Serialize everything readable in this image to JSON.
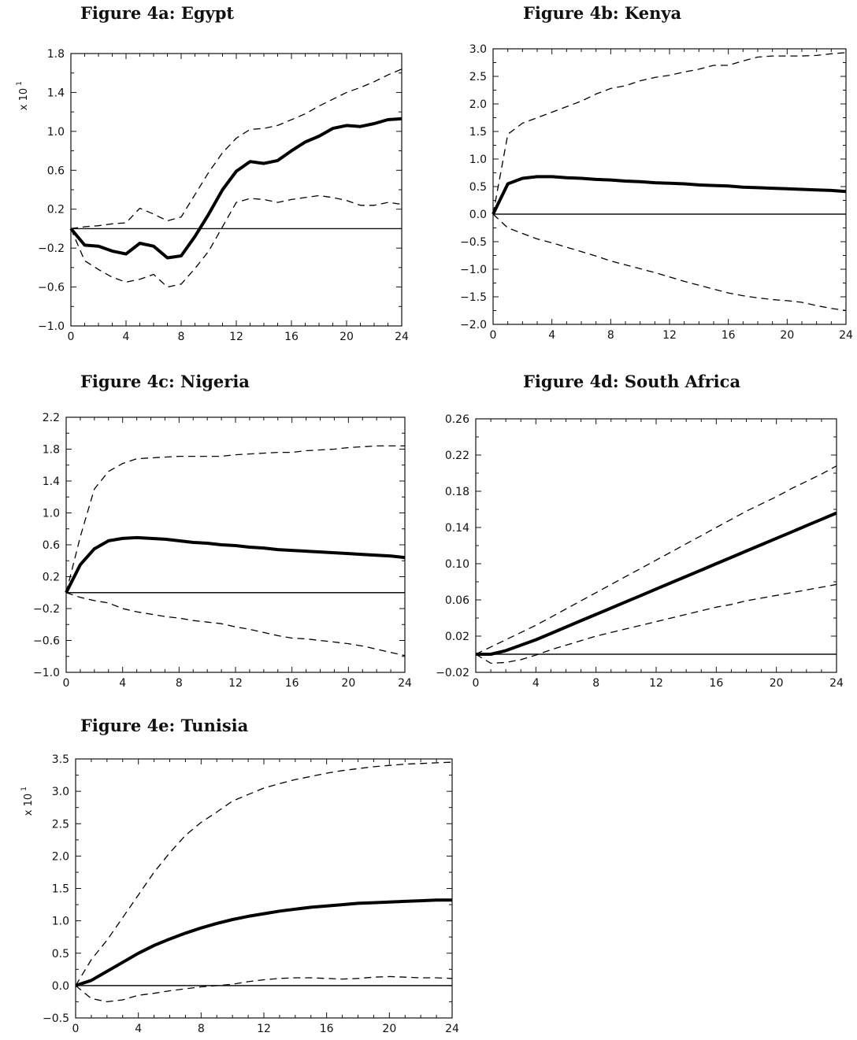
{
  "chart_data": [
    {
      "type": "line",
      "title": "Figure 4a: Egypt",
      "scale_label": "x 10",
      "scale_exp": "1",
      "xlim": [
        0,
        24
      ],
      "ylim": [
        -1.0,
        1.8
      ],
      "xticks": [
        "0",
        "4",
        "8",
        "12",
        "16",
        "20",
        "24"
      ],
      "yticks": [
        "-1.0",
        "-0.6",
        "-0.2",
        "0.2",
        "0.6",
        "1.0",
        "1.4",
        "1.8"
      ],
      "zero_line": true,
      "x": [
        0,
        1,
        2,
        3,
        4,
        5,
        6,
        7,
        8,
        9,
        10,
        11,
        12,
        13,
        14,
        15,
        16,
        17,
        18,
        19,
        20,
        21,
        22,
        23,
        24
      ],
      "series": [
        {
          "role": "estimate",
          "values": [
            0.0,
            -0.17,
            -0.18,
            -0.23,
            -0.26,
            -0.15,
            -0.18,
            -0.3,
            -0.28,
            -0.08,
            0.15,
            0.4,
            0.59,
            0.69,
            0.67,
            0.7,
            0.8,
            0.89,
            0.95,
            1.03,
            1.06,
            1.05,
            1.08,
            1.12,
            1.13
          ]
        },
        {
          "role": "upper",
          "values": [
            0.0,
            0.02,
            0.03,
            0.05,
            0.06,
            0.21,
            0.15,
            0.08,
            0.12,
            0.35,
            0.58,
            0.78,
            0.93,
            1.02,
            1.03,
            1.06,
            1.12,
            1.18,
            1.26,
            1.33,
            1.4,
            1.45,
            1.51,
            1.58,
            1.64
          ]
        },
        {
          "role": "lower",
          "values": [
            0.0,
            -0.33,
            -0.42,
            -0.5,
            -0.55,
            -0.52,
            -0.47,
            -0.6,
            -0.57,
            -0.41,
            -0.23,
            0.02,
            0.27,
            0.31,
            0.3,
            0.27,
            0.3,
            0.32,
            0.34,
            0.32,
            0.29,
            0.24,
            0.24,
            0.27,
            0.25
          ]
        }
      ]
    },
    {
      "type": "line",
      "title": "Figure 4b: Kenya",
      "scale_label": "",
      "scale_exp": "",
      "xlim": [
        0,
        24
      ],
      "ylim": [
        -2.0,
        3.0
      ],
      "xticks": [
        "0",
        "4",
        "8",
        "12",
        "16",
        "20",
        "24"
      ],
      "yticks": [
        "-2.0",
        "-1.5",
        "-1.0",
        "-0.5",
        "0.0",
        "0.5",
        "1.0",
        "1.5",
        "2.0",
        "2.5",
        "3.0"
      ],
      "zero_line": true,
      "x": [
        0,
        1,
        2,
        3,
        4,
        5,
        6,
        7,
        8,
        9,
        10,
        11,
        12,
        13,
        14,
        15,
        16,
        17,
        18,
        19,
        20,
        21,
        22,
        23,
        24
      ],
      "series": [
        {
          "role": "estimate",
          "values": [
            0.0,
            0.55,
            0.65,
            0.68,
            0.68,
            0.66,
            0.65,
            0.63,
            0.62,
            0.6,
            0.59,
            0.57,
            0.56,
            0.55,
            0.53,
            0.52,
            0.51,
            0.49,
            0.48,
            0.47,
            0.46,
            0.45,
            0.44,
            0.43,
            0.41
          ]
        },
        {
          "role": "upper",
          "values": [
            0.0,
            1.45,
            1.65,
            1.75,
            1.85,
            1.95,
            2.05,
            2.18,
            2.28,
            2.33,
            2.42,
            2.48,
            2.52,
            2.58,
            2.63,
            2.7,
            2.7,
            2.78,
            2.85,
            2.87,
            2.87,
            2.87,
            2.88,
            2.91,
            2.93
          ]
        },
        {
          "role": "lower",
          "values": [
            0.0,
            -0.25,
            -0.35,
            -0.45,
            -0.52,
            -0.6,
            -0.68,
            -0.76,
            -0.85,
            -0.92,
            -0.99,
            -1.06,
            -1.14,
            -1.22,
            -1.29,
            -1.36,
            -1.43,
            -1.48,
            -1.52,
            -1.55,
            -1.57,
            -1.6,
            -1.66,
            -1.71,
            -1.75
          ]
        }
      ]
    },
    {
      "type": "line",
      "title": "Figure 4c: Nigeria",
      "scale_label": "",
      "scale_exp": "",
      "xlim": [
        0,
        24
      ],
      "ylim": [
        -1.0,
        2.2
      ],
      "xticks": [
        "0",
        "4",
        "8",
        "12",
        "16",
        "20",
        "24"
      ],
      "yticks": [
        "-1.0",
        "-0.6",
        "-0.2",
        "0.2",
        "0.6",
        "1.0",
        "1.4",
        "1.8",
        "2.2"
      ],
      "zero_line": true,
      "x": [
        0,
        1,
        2,
        3,
        4,
        5,
        6,
        7,
        8,
        9,
        10,
        11,
        12,
        13,
        14,
        15,
        16,
        17,
        18,
        19,
        20,
        21,
        22,
        23,
        24
      ],
      "series": [
        {
          "role": "estimate",
          "values": [
            0.0,
            0.35,
            0.55,
            0.65,
            0.68,
            0.69,
            0.68,
            0.67,
            0.65,
            0.63,
            0.62,
            0.6,
            0.59,
            0.57,
            0.56,
            0.54,
            0.53,
            0.52,
            0.51,
            0.5,
            0.49,
            0.48,
            0.47,
            0.46,
            0.44
          ]
        },
        {
          "role": "upper",
          "values": [
            0.0,
            0.7,
            1.3,
            1.52,
            1.62,
            1.68,
            1.69,
            1.7,
            1.71,
            1.71,
            1.71,
            1.71,
            1.73,
            1.74,
            1.75,
            1.76,
            1.76,
            1.78,
            1.79,
            1.8,
            1.82,
            1.83,
            1.84,
            1.84,
            1.84
          ]
        },
        {
          "role": "lower",
          "values": [
            0.0,
            -0.06,
            -0.1,
            -0.13,
            -0.2,
            -0.24,
            -0.27,
            -0.3,
            -0.32,
            -0.35,
            -0.37,
            -0.39,
            -0.43,
            -0.46,
            -0.5,
            -0.54,
            -0.57,
            -0.58,
            -0.6,
            -0.62,
            -0.64,
            -0.67,
            -0.71,
            -0.75,
            -0.79
          ]
        }
      ]
    },
    {
      "type": "line",
      "title": "Figure 4d: South Africa",
      "scale_label": "",
      "scale_exp": "",
      "xlim": [
        0,
        24
      ],
      "ylim": [
        -0.02,
        0.26
      ],
      "xticks": [
        "0",
        "4",
        "8",
        "12",
        "16",
        "20",
        "24"
      ],
      "yticks": [
        "-0.02",
        "0.02",
        "0.06",
        "0.10",
        "0.14",
        "0.18",
        "0.22",
        "0.26"
      ],
      "zero_line": true,
      "x": [
        0,
        1,
        2,
        3,
        4,
        5,
        6,
        7,
        8,
        9,
        10,
        11,
        12,
        13,
        14,
        15,
        16,
        17,
        18,
        19,
        20,
        21,
        22,
        23,
        24
      ],
      "series": [
        {
          "role": "estimate",
          "values": [
            0.0,
            0.0,
            0.004,
            0.01,
            0.016,
            0.023,
            0.03,
            0.037,
            0.044,
            0.051,
            0.058,
            0.065,
            0.072,
            0.079,
            0.086,
            0.093,
            0.1,
            0.107,
            0.114,
            0.121,
            0.128,
            0.135,
            0.142,
            0.149,
            0.156
          ]
        },
        {
          "role": "upper",
          "values": [
            0.0,
            0.008,
            0.016,
            0.024,
            0.032,
            0.041,
            0.05,
            0.059,
            0.068,
            0.077,
            0.086,
            0.095,
            0.104,
            0.113,
            0.122,
            0.131,
            0.14,
            0.149,
            0.158,
            0.166,
            0.174,
            0.183,
            0.191,
            0.199,
            0.208
          ]
        },
        {
          "role": "lower",
          "values": [
            0.0,
            -0.01,
            -0.009,
            -0.006,
            -0.001,
            0.005,
            0.01,
            0.015,
            0.02,
            0.024,
            0.028,
            0.032,
            0.036,
            0.04,
            0.044,
            0.048,
            0.052,
            0.055,
            0.059,
            0.062,
            0.065,
            0.068,
            0.071,
            0.074,
            0.077
          ]
        }
      ]
    },
    {
      "type": "line",
      "title": "Figure 4e: Tunisia",
      "scale_label": "x 10",
      "scale_exp": "1",
      "xlim": [
        0,
        24
      ],
      "ylim": [
        -0.5,
        3.5
      ],
      "xticks": [
        "0",
        "4",
        "8",
        "12",
        "16",
        "20",
        "24"
      ],
      "yticks": [
        "-0.5",
        "0.0",
        "0.5",
        "1.0",
        "1.5",
        "2.0",
        "2.5",
        "3.0",
        "3.5"
      ],
      "zero_line": true,
      "x": [
        0,
        1,
        2,
        3,
        4,
        5,
        6,
        7,
        8,
        9,
        10,
        11,
        12,
        13,
        14,
        15,
        16,
        17,
        18,
        19,
        20,
        21,
        22,
        23,
        24
      ],
      "series": [
        {
          "role": "estimate",
          "values": [
            0.0,
            0.08,
            0.22,
            0.36,
            0.5,
            0.62,
            0.72,
            0.81,
            0.89,
            0.96,
            1.02,
            1.07,
            1.11,
            1.15,
            1.18,
            1.21,
            1.23,
            1.25,
            1.27,
            1.28,
            1.29,
            1.3,
            1.31,
            1.32,
            1.32
          ]
        },
        {
          "role": "upper",
          "values": [
            0.0,
            0.4,
            0.7,
            1.05,
            1.4,
            1.75,
            2.05,
            2.32,
            2.52,
            2.68,
            2.85,
            2.95,
            3.05,
            3.12,
            3.18,
            3.23,
            3.28,
            3.32,
            3.35,
            3.38,
            3.4,
            3.42,
            3.43,
            3.44,
            3.45
          ]
        },
        {
          "role": "lower",
          "values": [
            0.0,
            -0.2,
            -0.25,
            -0.22,
            -0.15,
            -0.12,
            -0.08,
            -0.05,
            -0.02,
            0.0,
            0.02,
            0.06,
            0.09,
            0.11,
            0.12,
            0.12,
            0.11,
            0.1,
            0.11,
            0.13,
            0.14,
            0.13,
            0.12,
            0.12,
            0.11
          ]
        }
      ]
    }
  ]
}
